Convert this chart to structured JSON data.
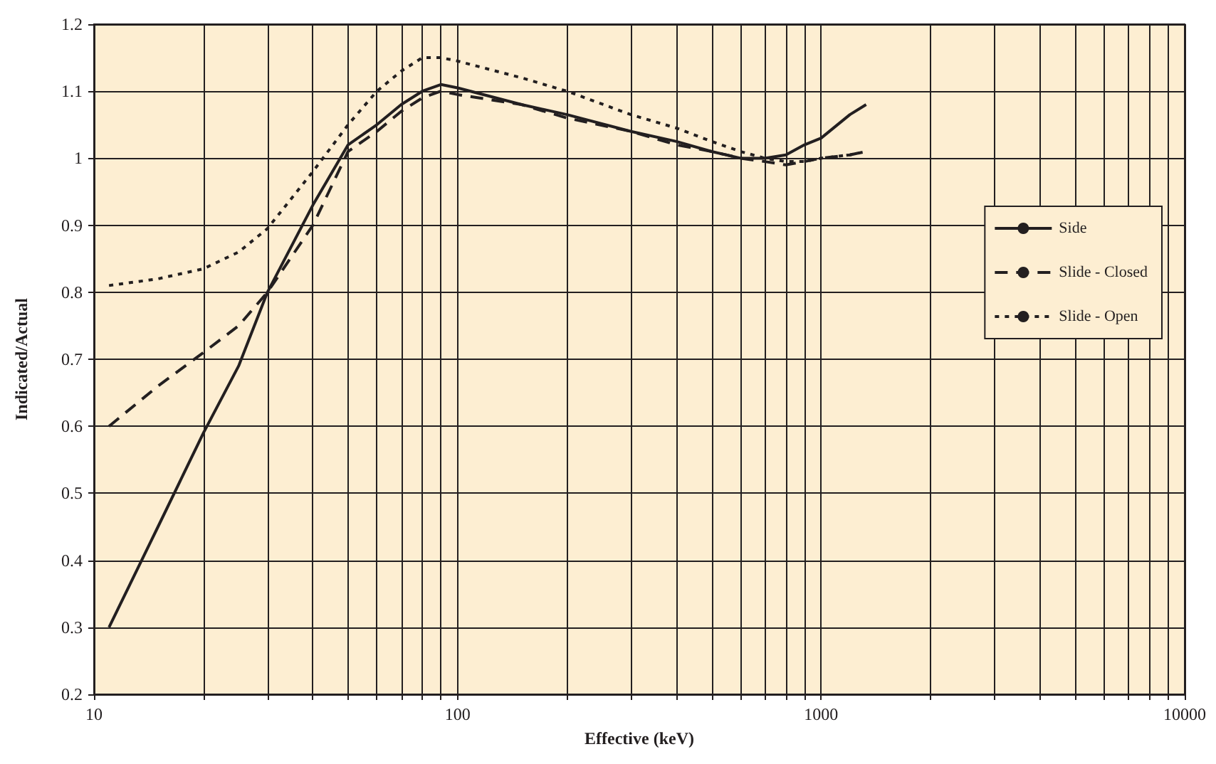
{
  "chart_data": {
    "type": "line",
    "xlabel": "Effective (keV)",
    "ylabel": "Indicated/Actual",
    "x": [
      11,
      15,
      20,
      25,
      30,
      40,
      50,
      60,
      70,
      80,
      90,
      100,
      150,
      200,
      300,
      400,
      500,
      600,
      700,
      800,
      900,
      1000,
      1200,
      1330
    ],
    "series": [
      {
        "name": "Side",
        "color": "#231f20",
        "line_style": "solid",
        "values": [
          0.3,
          0.45,
          0.59,
          0.69,
          0.8,
          0.93,
          1.02,
          1.05,
          1.08,
          1.1,
          1.11,
          1.105,
          1.08,
          1.065,
          1.04,
          1.025,
          1.01,
          1.0,
          1.0,
          1.005,
          1.02,
          1.03,
          1.065,
          1.08
        ]
      },
      {
        "name": "Slide - Closed",
        "color": "#231f20",
        "line_style": "dashed",
        "values": [
          0.6,
          0.66,
          0.71,
          0.75,
          0.8,
          0.9,
          1.01,
          1.04,
          1.07,
          1.09,
          1.1,
          1.095,
          1.08,
          1.06,
          1.04,
          1.02,
          1.01,
          1.0,
          0.995,
          0.99,
          0.995,
          1.0,
          1.005,
          1.01
        ]
      },
      {
        "name": "Slide - Open",
        "color": "#231f20",
        "line_style": "dotted",
        "values": [
          0.81,
          0.82,
          0.835,
          0.86,
          0.895,
          0.98,
          1.05,
          1.1,
          1.13,
          1.15,
          1.15,
          1.145,
          1.12,
          1.1,
          1.065,
          1.045,
          1.025,
          1.01,
          1.0,
          0.995,
          0.995,
          1.0,
          1.005,
          1.01
        ]
      }
    ],
    "log": "x",
    "xlim": [
      10,
      10000
    ],
    "xticks": [
      10,
      {
        "value": 20,
        "label": null
      },
      {
        "value": 30,
        "label": null
      },
      {
        "value": 40,
        "label": null
      },
      {
        "value": 50,
        "label": null
      },
      {
        "value": 60,
        "label": null
      },
      {
        "value": 70,
        "label": null
      },
      {
        "value": 80,
        "label": null
      },
      {
        "value": 90,
        "label": null
      },
      100,
      {
        "value": 200,
        "label": null
      },
      {
        "value": 300,
        "label": null
      },
      {
        "value": 400,
        "label": null
      },
      {
        "value": 500,
        "label": null
      },
      {
        "value": 600,
        "label": null
      },
      {
        "value": 700,
        "label": null
      },
      {
        "value": 800,
        "label": null
      },
      {
        "value": 900,
        "label": null
      },
      1000,
      {
        "value": 2000,
        "label": null
      },
      {
        "value": 3000,
        "label": null
      },
      {
        "value": 4000,
        "label": null
      },
      {
        "value": 5000,
        "label": null
      },
      {
        "value": 6000,
        "label": null
      },
      {
        "value": 7000,
        "label": null
      },
      {
        "value": 8000,
        "label": null
      },
      {
        "value": 9000,
        "label": null
      },
      10000
    ],
    "ylim": [
      0.2,
      1.2
    ],
    "yticks": [
      0.2,
      0.3,
      0.4,
      0.5,
      0.6,
      0.7,
      0.8,
      0.9,
      1,
      1.1,
      1.2
    ],
    "grid": true,
    "legend": "right",
    "marker": "none"
  }
}
